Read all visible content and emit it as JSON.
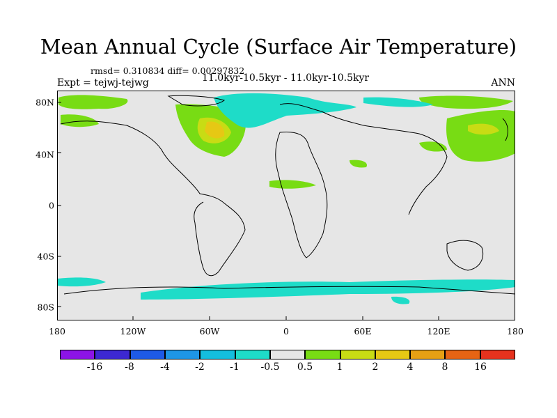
{
  "title": "Mean Annual Cycle (Surface Air Temperature)",
  "stats": "rmsd= 0.310834 diff= 0.00297832",
  "experiment": "Expt = tejwj-tejwg",
  "period": "11.0kyr-10.5kyr - 11.0kyr-10.5kyr",
  "season": "ANN",
  "map": {
    "x_ticks": [
      "180",
      "120W",
      "60W",
      "0",
      "60E",
      "120E",
      "180"
    ],
    "y_ticks": [
      "80N",
      "40N",
      "0",
      "40S",
      "80S"
    ],
    "background_color": "#e6e6e6"
  },
  "colorbar": {
    "colors": [
      "#8c14e6",
      "#3c28d2",
      "#1e5ae6",
      "#1e96e6",
      "#14bede",
      "#1edcc8",
      "#e6e6e6",
      "#78dc14",
      "#c8dc14",
      "#e6c814",
      "#e6a014",
      "#e66414",
      "#e6321e"
    ],
    "labels": [
      "-16",
      "-8",
      "-4",
      "-2",
      "-1",
      "-0.5",
      "0.5",
      "1",
      "2",
      "4",
      "8",
      "16"
    ]
  }
}
